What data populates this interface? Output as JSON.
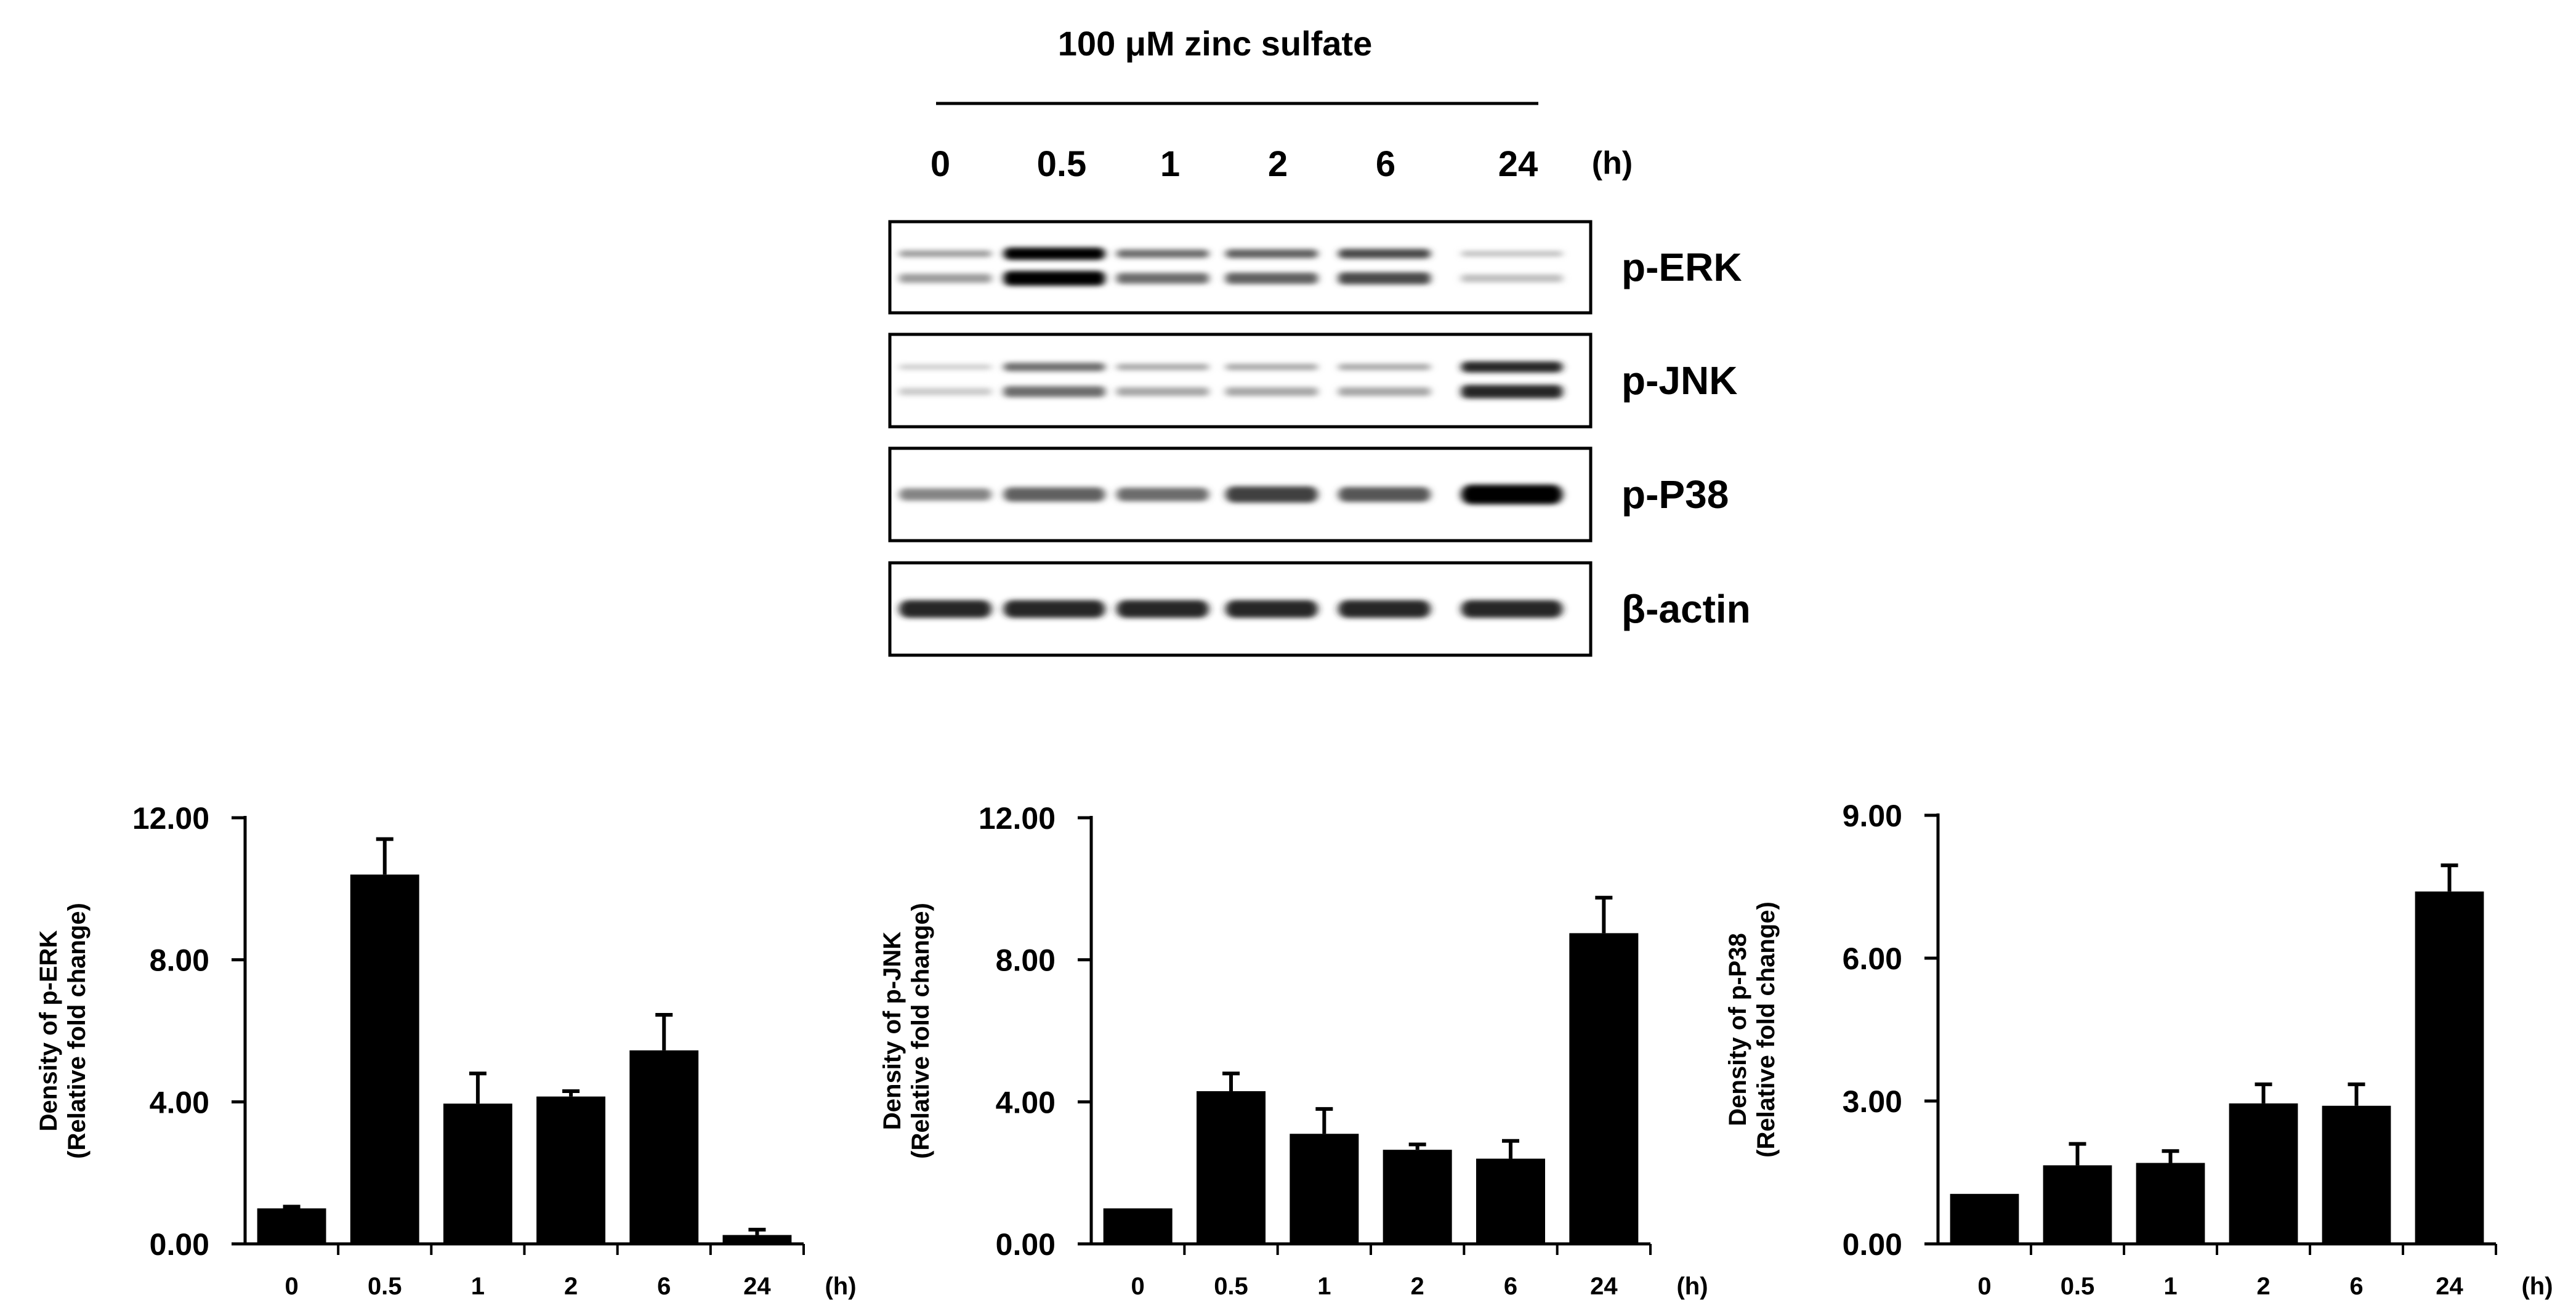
{
  "blot": {
    "treatment": "100 μM zinc sulfate",
    "lanes": [
      "0",
      "0.5",
      "1",
      "2",
      "6",
      "24"
    ],
    "unit": "(h)",
    "panels": [
      {
        "label": "p-ERK",
        "intensity": [
          0.35,
          1.0,
          0.55,
          0.6,
          0.7,
          0.2
        ],
        "bands": 2
      },
      {
        "label": "p-JNK",
        "intensity": [
          0.15,
          0.55,
          0.3,
          0.3,
          0.3,
          0.85
        ],
        "bands": 2
      },
      {
        "label": "p-P38",
        "intensity": [
          0.45,
          0.6,
          0.55,
          0.75,
          0.65,
          1.0
        ],
        "bands": 1
      },
      {
        "label": "β-actin",
        "intensity": [
          0.85,
          0.85,
          0.85,
          0.85,
          0.85,
          0.85
        ],
        "bands": 1
      }
    ]
  },
  "chart_data": [
    {
      "type": "bar",
      "ylabel": "Density of p-ERK",
      "ylabel2": "(Relative fold change)",
      "xunit": "(h)",
      "categories": [
        "0",
        "0.5",
        "1",
        "2",
        "6",
        "24"
      ],
      "values": [
        1.0,
        10.4,
        3.95,
        4.15,
        5.45,
        0.25
      ],
      "errors": [
        0.05,
        1.0,
        0.85,
        0.15,
        1.0,
        0.15
      ],
      "ylim": [
        0,
        12
      ],
      "yticks": [
        "0.00",
        "4.00",
        "8.00",
        "12.00"
      ],
      "ytick_values": [
        0,
        4,
        8,
        12
      ]
    },
    {
      "type": "bar",
      "ylabel": "Density of p-JNK",
      "ylabel2": "(Relative fold change)",
      "xunit": "(h)",
      "categories": [
        "0",
        "0.5",
        "1",
        "2",
        "6",
        "24"
      ],
      "values": [
        1.0,
        4.3,
        3.1,
        2.65,
        2.4,
        8.75
      ],
      "errors": [
        0.0,
        0.5,
        0.7,
        0.15,
        0.5,
        1.0
      ],
      "ylim": [
        0,
        12
      ],
      "yticks": [
        "0.00",
        "4.00",
        "8.00",
        "12.00"
      ],
      "ytick_values": [
        0,
        4,
        8,
        12
      ]
    },
    {
      "type": "bar",
      "ylabel": "Density of p-P38",
      "ylabel2": "(Relative fold change)",
      "xunit": "(h)",
      "categories": [
        "0",
        "0.5",
        "1",
        "2",
        "6",
        "24"
      ],
      "values": [
        1.05,
        1.65,
        1.7,
        2.95,
        2.9,
        7.4
      ],
      "errors": [
        0.0,
        0.45,
        0.25,
        0.4,
        0.45,
        0.55
      ],
      "ylim": [
        0,
        9
      ],
      "yticks": [
        "0.00",
        "3.00",
        "6.00",
        "9.00"
      ],
      "ytick_values": [
        0,
        3,
        6,
        9
      ]
    }
  ]
}
